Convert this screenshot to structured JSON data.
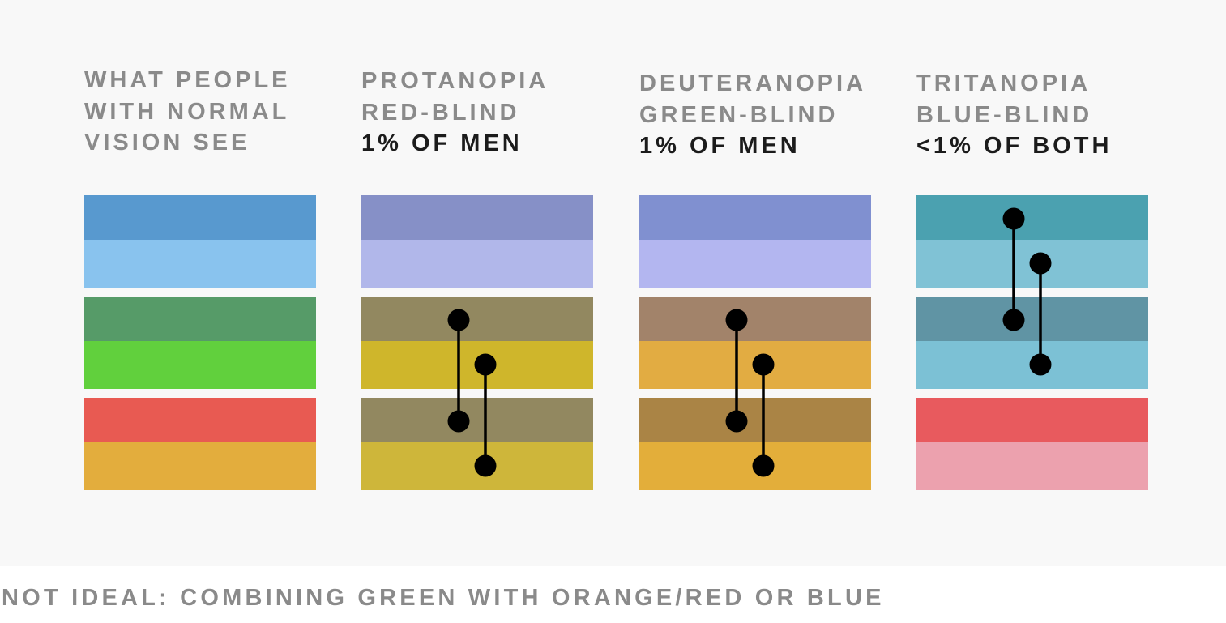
{
  "columns": [
    {
      "id": "normal",
      "heading": [
        "WHAT PEOPLE",
        "WITH NORMAL",
        "VISION SEE"
      ],
      "share": "",
      "pairs": [
        [
          "#5899cf",
          "#89c3ee"
        ],
        [
          "#569b68",
          "#61d03d"
        ],
        [
          "#e85a52",
          "#e3ad3d"
        ]
      ],
      "links": []
    },
    {
      "id": "protanopia",
      "heading": [
        "PROTANOPIA",
        "RED-BLIND"
      ],
      "share": "1% OF MEN",
      "pairs": [
        [
          "#8690c7",
          "#b1b7ea"
        ],
        [
          "#928860",
          "#cfb62b"
        ],
        [
          "#928860",
          "#ceb63a"
        ]
      ],
      "links": [
        {
          "from": "pair2.top",
          "to": "pair3.top",
          "lane": 0
        },
        {
          "from": "pair2.bottom",
          "to": "pair3.bottom",
          "lane": 1
        }
      ]
    },
    {
      "id": "deuteranopia",
      "heading": [
        "DEUTERANOPIA",
        "GREEN-BLIND"
      ],
      "share": "1% OF MEN",
      "pairs": [
        [
          "#8090d0",
          "#b3b6f0"
        ],
        [
          "#a2836a",
          "#e2ac42"
        ],
        [
          "#aa8445",
          "#e3ae3a"
        ]
      ],
      "links": [
        {
          "from": "pair2.top",
          "to": "pair3.top",
          "lane": 0
        },
        {
          "from": "pair2.bottom",
          "to": "pair3.bottom",
          "lane": 1
        }
      ]
    },
    {
      "id": "tritanopia",
      "heading": [
        "TRITANOPIA",
        "BLUE-BLIND"
      ],
      "share": "<1% OF BOTH",
      "pairs": [
        [
          "#4ba1b0",
          "#80c2d5"
        ],
        [
          "#6094a4",
          "#7cc1d5"
        ],
        [
          "#e85a5e",
          "#eca1ae"
        ]
      ],
      "links": [
        {
          "from": "pair1.top",
          "to": "pair2.top",
          "lane": 0
        },
        {
          "from": "pair1.bottom",
          "to": "pair2.bottom",
          "lane": 1
        }
      ]
    }
  ],
  "caption": "NOT IDEAL: COMBINING GREEN WITH ORANGE/RED OR BLUE",
  "colors": {
    "panel_background": "#f8f8f8",
    "heading_text": "#8a8a8a",
    "share_text": "#1b1b1b",
    "link": "#000000"
  }
}
